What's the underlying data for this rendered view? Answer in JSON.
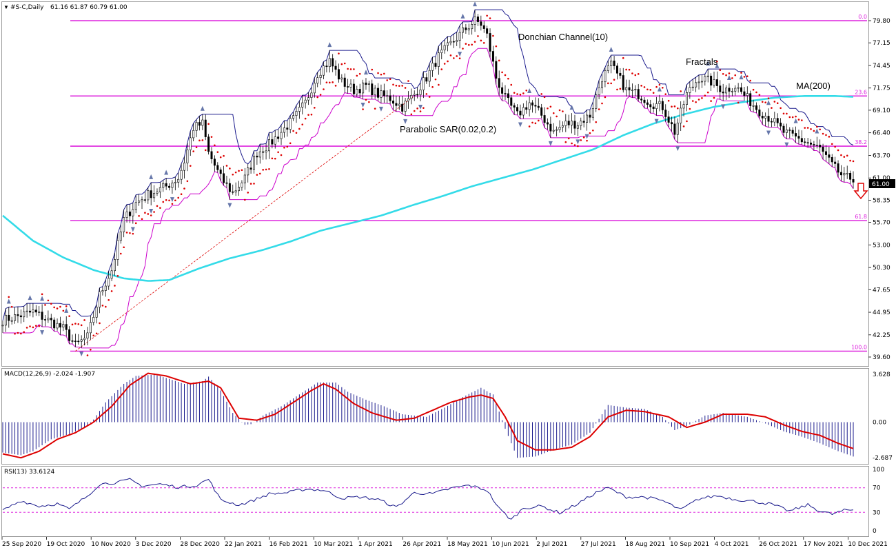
{
  "header": {
    "title": "#S-C,Daily",
    "ohlc": "61.16 61.87 60.79 61.00"
  },
  "colors": {
    "candle": "#000000",
    "ma": "#33dbe8",
    "sar": "#dd0000",
    "donchian": "#1a1a8c",
    "fractal_lower": "#cc00cc",
    "fib": "#dd22dd",
    "macd_signal": "#dd0000",
    "macd_hist": "#1a1a8c",
    "rsi": "#1a1a8c",
    "arrow": "#dd0000"
  },
  "annotations": {
    "donchian": "Donchian Channel(10)",
    "fractals": "Fractals",
    "ma": "MA(200)",
    "sar": "Parabolic SAR(0.02,0.2)"
  },
  "current_price": "61.00",
  "chart_data": [
    {
      "type": "candlestick",
      "title": "#S-C,Daily",
      "x_labels": [
        "25 Sep 2020",
        "19 Oct 2020",
        "10 Nov 2020",
        "3 Dec 2020",
        "28 Dec 2020",
        "22 Jan 2021",
        "16 Feb 2021",
        "10 Mar 2021",
        "1 Apr 2021",
        "26 Apr 2021",
        "18 May 2021",
        "10 Jun 2021",
        "2 Jul 2021",
        "27 Jul 2021",
        "18 Aug 2021",
        "10 Sep 2021",
        "4 Oct 2021",
        "26 Oct 2021",
        "17 Nov 2021",
        "10 Dec 2021"
      ],
      "y_ticks": [
        "79.80",
        "77.15",
        "74.45",
        "71.75",
        "69.10",
        "66.40",
        "63.70",
        "61.00",
        "58.35",
        "55.70",
        "53.00",
        "50.30",
        "47.65",
        "44.95",
        "42.25",
        "39.60"
      ],
      "ylim": [
        39.2,
        81.3
      ],
      "close_key_points": [
        [
          0,
          44
        ],
        [
          10,
          45
        ],
        [
          20,
          43
        ],
        [
          24,
          41
        ],
        [
          28,
          42
        ],
        [
          32,
          47
        ],
        [
          36,
          50
        ],
        [
          40,
          56
        ],
        [
          44,
          58
        ],
        [
          48,
          59
        ],
        [
          54,
          60
        ],
        [
          58,
          61
        ],
        [
          60,
          63
        ],
        [
          63,
          67
        ],
        [
          66,
          67.5
        ],
        [
          68,
          64
        ],
        [
          72,
          61
        ],
        [
          76,
          59.2
        ],
        [
          80,
          61
        ],
        [
          84,
          64
        ],
        [
          88,
          65
        ],
        [
          92,
          66.5
        ],
        [
          96,
          68
        ],
        [
          100,
          70
        ],
        [
          104,
          73.5
        ],
        [
          108,
          75
        ],
        [
          112,
          72.5
        ],
        [
          116,
          71.5
        ],
        [
          120,
          72
        ],
        [
          124,
          71
        ],
        [
          128,
          70.5
        ],
        [
          132,
          69.5
        ],
        [
          136,
          71
        ],
        [
          140,
          73
        ],
        [
          144,
          75.5
        ],
        [
          148,
          77
        ],
        [
          152,
          78.5
        ],
        [
          156,
          79.8
        ],
        [
          158,
          79.4
        ],
        [
          160,
          78
        ],
        [
          163,
          73
        ],
        [
          166,
          70.5
        ],
        [
          170,
          68.5
        ],
        [
          174,
          70
        ],
        [
          178,
          68.5
        ],
        [
          182,
          66.5
        ],
        [
          186,
          67.5
        ],
        [
          190,
          67.5
        ],
        [
          194,
          68.5
        ],
        [
          198,
          73
        ],
        [
          201,
          74.5
        ],
        [
          206,
          71.5
        ],
        [
          210,
          71
        ],
        [
          214,
          70
        ],
        [
          218,
          69.5
        ],
        [
          222,
          66.5
        ],
        [
          226,
          71
        ],
        [
          230,
          73
        ],
        [
          234,
          72.5
        ],
        [
          238,
          71.5
        ],
        [
          242,
          72
        ],
        [
          246,
          70.5
        ],
        [
          250,
          69
        ],
        [
          254,
          68
        ],
        [
          258,
          66.5
        ],
        [
          262,
          65.8
        ],
        [
          266,
          65.2
        ],
        [
          270,
          64.5
        ],
        [
          274,
          62.5
        ],
        [
          278,
          61
        ],
        [
          281,
          61
        ]
      ],
      "fibonacci_levels": [
        {
          "label": "0.0",
          "value": 79.8
        },
        {
          "label": "23.6",
          "value": 70.8
        },
        {
          "label": "38.2",
          "value": 64.8
        },
        {
          "label": "61.8",
          "value": 55.9
        },
        {
          "label": "100.0",
          "value": 40.3
        }
      ],
      "ma200_key_points": [
        [
          0,
          56.5
        ],
        [
          10,
          53.5
        ],
        [
          20,
          51.5
        ],
        [
          30,
          50
        ],
        [
          40,
          49
        ],
        [
          48,
          48.7
        ],
        [
          55,
          48.8
        ],
        [
          65,
          50.2
        ],
        [
          75,
          51.4
        ],
        [
          85,
          52.3
        ],
        [
          95,
          53.4
        ],
        [
          105,
          54.7
        ],
        [
          115,
          55.6
        ],
        [
          125,
          56.5
        ],
        [
          135,
          57.7
        ],
        [
          145,
          58.8
        ],
        [
          155,
          60
        ],
        [
          165,
          61
        ],
        [
          175,
          62
        ],
        [
          185,
          63.2
        ],
        [
          195,
          64.4
        ],
        [
          205,
          66.1
        ],
        [
          215,
          67.5
        ],
        [
          225,
          68.6
        ],
        [
          235,
          69.5
        ],
        [
          245,
          70.1
        ],
        [
          255,
          70.6
        ],
        [
          265,
          70.8
        ],
        [
          275,
          70.8
        ],
        [
          281,
          70.7
        ]
      ],
      "trendline": {
        "from": [
          24,
          40.3
        ],
        "to": [
          136,
          70.8
        ]
      }
    },
    {
      "type": "area",
      "title": "MACD(12,26,9) -2.024 -1.907",
      "y_ticks": [
        "3.628",
        "0.00",
        "-2.687"
      ],
      "ylim": [
        -3.1,
        3.9
      ],
      "hist_key_points": [
        [
          0,
          -2.3
        ],
        [
          6,
          -2.5
        ],
        [
          10,
          -2.2
        ],
        [
          16,
          -1.3
        ],
        [
          22,
          -0.9
        ],
        [
          28,
          -0.3
        ],
        [
          30,
          0.2
        ],
        [
          34,
          1.5
        ],
        [
          40,
          2.9
        ],
        [
          44,
          3.5
        ],
        [
          50,
          3.6
        ],
        [
          54,
          3.35
        ],
        [
          60,
          2.9
        ],
        [
          66,
          3.1
        ],
        [
          68,
          3.45
        ],
        [
          72,
          2.4
        ],
        [
          76,
          0.7
        ],
        [
          80,
          -0.2
        ],
        [
          82,
          -0.15
        ],
        [
          86,
          0.5
        ],
        [
          92,
          1.2
        ],
        [
          98,
          2.1
        ],
        [
          104,
          3
        ],
        [
          110,
          3
        ],
        [
          114,
          2.3
        ],
        [
          120,
          1.7
        ],
        [
          126,
          1.2
        ],
        [
          132,
          0.6
        ],
        [
          140,
          0.4
        ],
        [
          146,
          1.1
        ],
        [
          152,
          1.9
        ],
        [
          158,
          2.6
        ],
        [
          162,
          2.1
        ],
        [
          166,
          -0.5
        ],
        [
          170,
          -2.7
        ],
        [
          176,
          -2.6
        ],
        [
          182,
          -2.1
        ],
        [
          188,
          -1.7
        ],
        [
          194,
          -0.8
        ],
        [
          200,
          1.3
        ],
        [
          206,
          1.1
        ],
        [
          212,
          1
        ],
        [
          218,
          0.4
        ],
        [
          222,
          -0.6
        ],
        [
          226,
          -0.3
        ],
        [
          232,
          0.5
        ],
        [
          238,
          0.7
        ],
        [
          246,
          0.4
        ],
        [
          252,
          -0.1
        ],
        [
          258,
          -0.7
        ],
        [
          264,
          -1.1
        ],
        [
          270,
          -1.6
        ],
        [
          276,
          -2.2
        ],
        [
          281,
          -2.6
        ]
      ],
      "signal_key_points": [
        [
          0,
          -2.4
        ],
        [
          6,
          -2.7
        ],
        [
          12,
          -2.2
        ],
        [
          18,
          -1.3
        ],
        [
          24,
          -0.8
        ],
        [
          30,
          0
        ],
        [
          36,
          1.2
        ],
        [
          42,
          2.8
        ],
        [
          48,
          3.7
        ],
        [
          54,
          3.5
        ],
        [
          62,
          2.9
        ],
        [
          68,
          3.1
        ],
        [
          72,
          2.6
        ],
        [
          78,
          0.3
        ],
        [
          84,
          0.15
        ],
        [
          90,
          0.6
        ],
        [
          96,
          1.5
        ],
        [
          102,
          2.4
        ],
        [
          106,
          2.9
        ],
        [
          110,
          2.5
        ],
        [
          116,
          1.4
        ],
        [
          122,
          0.7
        ],
        [
          130,
          0.15
        ],
        [
          136,
          0.3
        ],
        [
          142,
          0.9
        ],
        [
          148,
          1.5
        ],
        [
          154,
          1.9
        ],
        [
          158,
          2.05
        ],
        [
          162,
          1.8
        ],
        [
          166,
          0.4
        ],
        [
          170,
          -1.4
        ],
        [
          176,
          -2.1
        ],
        [
          182,
          -2.1
        ],
        [
          188,
          -1.9
        ],
        [
          194,
          -1.1
        ],
        [
          200,
          0.4
        ],
        [
          206,
          0.9
        ],
        [
          212,
          0.8
        ],
        [
          220,
          0.4
        ],
        [
          226,
          -0.4
        ],
        [
          232,
          0
        ],
        [
          238,
          0.6
        ],
        [
          246,
          0.6
        ],
        [
          252,
          0.4
        ],
        [
          258,
          -0.2
        ],
        [
          264,
          -0.7
        ],
        [
          270,
          -1.0
        ],
        [
          276,
          -1.6
        ],
        [
          281,
          -2.0
        ]
      ]
    },
    {
      "type": "line",
      "title": "RSI(13) 33.6124",
      "y_ticks": [
        "100",
        "70",
        "30",
        "0"
      ],
      "ylim": [
        0,
        100
      ],
      "guide_levels": [
        70,
        30
      ],
      "values_key_points": [
        [
          0,
          33
        ],
        [
          6,
          49
        ],
        [
          12,
          40
        ],
        [
          18,
          44
        ],
        [
          22,
          35
        ],
        [
          28,
          57
        ],
        [
          32,
          76
        ],
        [
          38,
          79
        ],
        [
          42,
          83
        ],
        [
          46,
          73
        ],
        [
          52,
          76
        ],
        [
          58,
          71
        ],
        [
          64,
          74
        ],
        [
          68,
          84
        ],
        [
          72,
          50
        ],
        [
          78,
          42
        ],
        [
          82,
          48
        ],
        [
          88,
          60
        ],
        [
          94,
          62
        ],
        [
          100,
          68
        ],
        [
          106,
          66
        ],
        [
          112,
          53
        ],
        [
          118,
          55
        ],
        [
          124,
          51
        ],
        [
          130,
          38
        ],
        [
          136,
          62
        ],
        [
          142,
          60
        ],
        [
          148,
          69
        ],
        [
          154,
          74
        ],
        [
          160,
          66
        ],
        [
          164,
          36
        ],
        [
          168,
          18
        ],
        [
          172,
          37
        ],
        [
          178,
          40
        ],
        [
          184,
          29
        ],
        [
          190,
          44
        ],
        [
          196,
          62
        ],
        [
          200,
          70
        ],
        [
          206,
          55
        ],
        [
          212,
          55
        ],
        [
          218,
          49
        ],
        [
          224,
          34
        ],
        [
          230,
          52
        ],
        [
          236,
          57
        ],
        [
          242,
          51
        ],
        [
          248,
          48
        ],
        [
          254,
          43
        ],
        [
          260,
          32
        ],
        [
          266,
          42
        ],
        [
          270,
          32
        ],
        [
          274,
          27
        ],
        [
          278,
          33
        ],
        [
          281,
          34
        ]
      ]
    }
  ]
}
